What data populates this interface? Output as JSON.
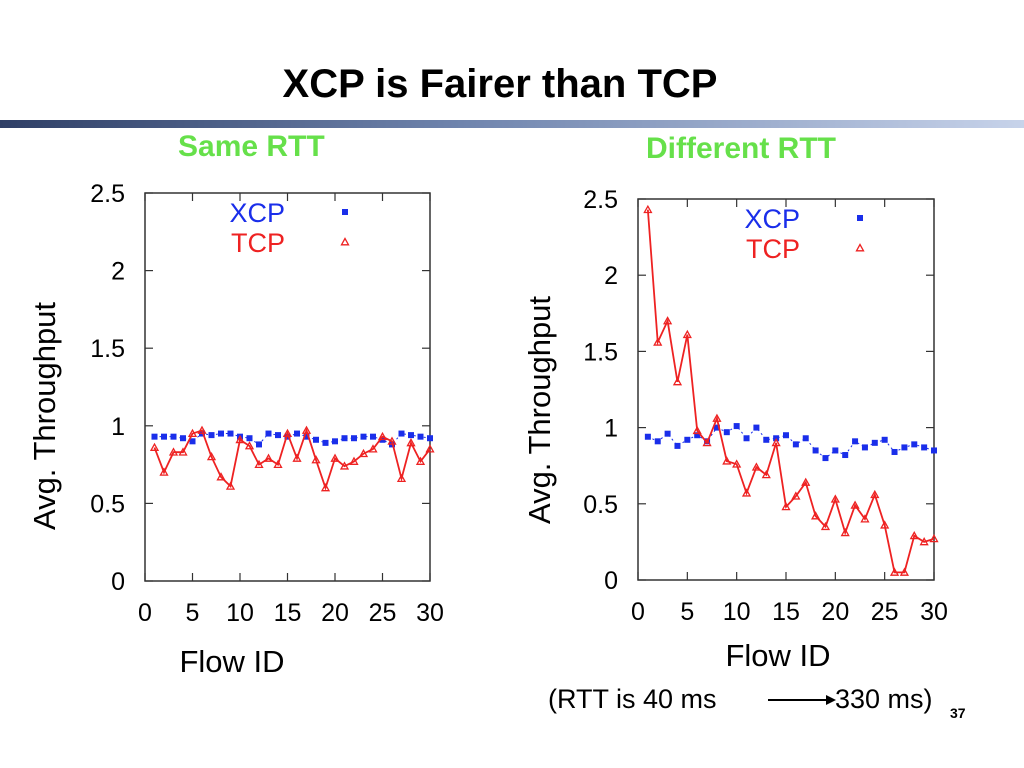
{
  "slide": {
    "title": "XCP is Fairer than TCP",
    "page_number": "37",
    "note_left": "(RTT is 40 ms",
    "note_right": "330 ms)"
  },
  "colors": {
    "xcp": "#1a2eea",
    "tcp": "#ee2222",
    "panel_label": "#66e04a"
  },
  "chart_data": [
    {
      "type": "line",
      "title": "Same RTT",
      "xlabel": "Flow ID",
      "ylabel": "Avg. Throughput",
      "xlim": [
        0,
        30
      ],
      "ylim": [
        0,
        2.5
      ],
      "xticks": [
        "0",
        "5",
        "10",
        "15",
        "20",
        "25",
        "30"
      ],
      "yticks": [
        "0",
        "0.5",
        "1",
        "1.5",
        "2",
        "2.5"
      ],
      "grid": false,
      "legend": "top-center",
      "x": [
        1,
        2,
        3,
        4,
        5,
        6,
        7,
        8,
        9,
        10,
        11,
        12,
        13,
        14,
        15,
        16,
        17,
        18,
        19,
        20,
        21,
        22,
        23,
        24,
        25,
        26,
        27,
        28,
        29,
        30
      ],
      "series": [
        {
          "name": "XCP",
          "marker": "square",
          "line": false,
          "values": [
            0.93,
            0.93,
            0.93,
            0.92,
            0.9,
            0.95,
            0.94,
            0.95,
            0.95,
            0.93,
            0.92,
            0.88,
            0.95,
            0.94,
            0.93,
            0.95,
            0.93,
            0.91,
            0.89,
            0.9,
            0.92,
            0.92,
            0.93,
            0.93,
            0.91,
            0.88,
            0.95,
            0.94,
            0.93,
            0.92
          ]
        },
        {
          "name": "TCP",
          "marker": "triangle",
          "line": true,
          "values": [
            0.86,
            0.7,
            0.83,
            0.83,
            0.95,
            0.97,
            0.8,
            0.67,
            0.61,
            0.91,
            0.87,
            0.75,
            0.79,
            0.75,
            0.95,
            0.79,
            0.97,
            0.78,
            0.6,
            0.79,
            0.74,
            0.77,
            0.82,
            0.85,
            0.93,
            0.9,
            0.66,
            0.89,
            0.77,
            0.85
          ]
        }
      ]
    },
    {
      "type": "line",
      "title": "Different RTT",
      "xlabel": "Flow ID",
      "ylabel": "Avg. Throughput",
      "xlim": [
        0,
        30
      ],
      "ylim": [
        0,
        2.5
      ],
      "xticks": [
        "0",
        "5",
        "10",
        "15",
        "20",
        "25",
        "30"
      ],
      "yticks": [
        "0",
        "0.5",
        "1",
        "1.5",
        "2",
        "2.5"
      ],
      "grid": false,
      "legend": "top-center",
      "x": [
        1,
        2,
        3,
        4,
        5,
        6,
        7,
        8,
        9,
        10,
        11,
        12,
        13,
        14,
        15,
        16,
        17,
        18,
        19,
        20,
        21,
        22,
        23,
        24,
        25,
        26,
        27,
        28,
        29,
        30
      ],
      "series": [
        {
          "name": "XCP",
          "marker": "square",
          "line": false,
          "values": [
            0.94,
            0.91,
            0.96,
            0.88,
            0.92,
            0.95,
            0.91,
            1.0,
            0.97,
            1.01,
            0.93,
            1.0,
            0.92,
            0.93,
            0.95,
            0.89,
            0.93,
            0.85,
            0.8,
            0.85,
            0.82,
            0.91,
            0.87,
            0.9,
            0.92,
            0.84,
            0.87,
            0.89,
            0.87,
            0.85
          ]
        },
        {
          "name": "TCP",
          "marker": "triangle",
          "line": true,
          "values": [
            2.43,
            1.56,
            1.7,
            1.3,
            1.61,
            0.98,
            0.9,
            1.06,
            0.78,
            0.76,
            0.57,
            0.74,
            0.69,
            0.9,
            0.48,
            0.55,
            0.64,
            0.42,
            0.35,
            0.53,
            0.31,
            0.49,
            0.4,
            0.56,
            0.36,
            0.05,
            0.05,
            0.29,
            0.25,
            0.27
          ]
        }
      ]
    }
  ]
}
